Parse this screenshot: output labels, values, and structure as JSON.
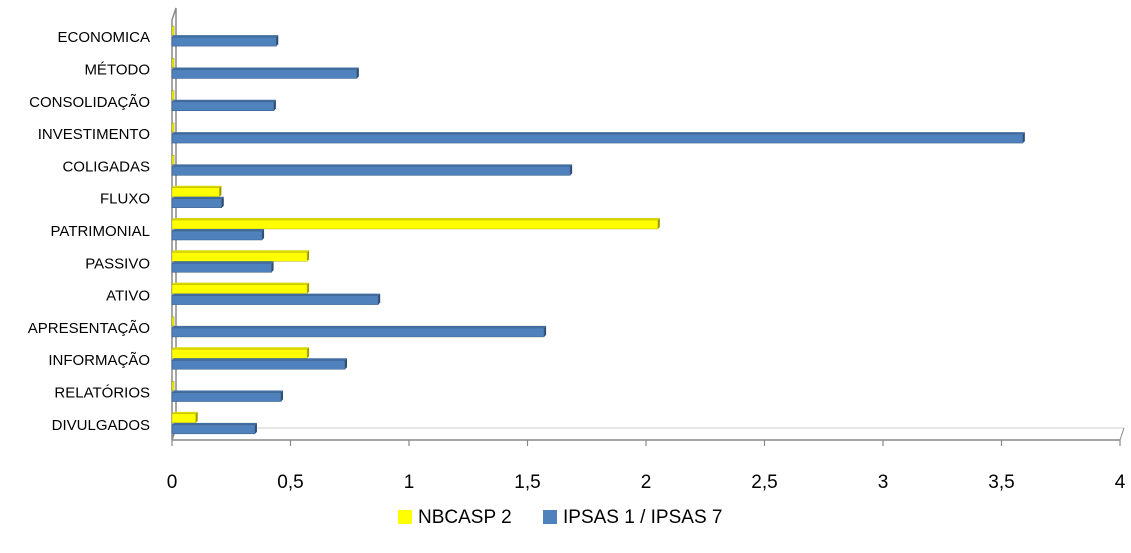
{
  "chart_data": {
    "type": "bar",
    "orientation": "horizontal",
    "categories": [
      "ECONOMICA",
      "MÉTODO",
      "CONSOLIDAÇÃO",
      "INVESTIMENTO",
      "COLIGADAS",
      "FLUXO",
      "PATRIMONIAL",
      "PASSIVO",
      "ATIVO",
      "APRESENTAÇÃO",
      "INFORMAÇÃO",
      "RELATÓRIOS",
      "DIVULGADOS"
    ],
    "series": [
      {
        "name": "NBCASP 2",
        "color": "#FFFF00",
        "values": [
          0,
          0,
          0,
          0,
          0,
          0.2,
          2.05,
          0.57,
          0.57,
          0,
          0.57,
          0,
          0.1
        ]
      },
      {
        "name": "IPSAS 1 / IPSAS 7",
        "color": "#4F81BD",
        "values": [
          0.44,
          0.78,
          0.43,
          3.59,
          1.68,
          0.21,
          0.38,
          0.42,
          0.87,
          1.57,
          0.73,
          0.46,
          0.35
        ]
      }
    ],
    "x_ticks": [
      "0",
      "0,5",
      "1",
      "1,5",
      "2",
      "2,5",
      "3",
      "3,5",
      "4"
    ],
    "xlim": [
      0,
      4
    ],
    "grid": false,
    "legend_position": "bottom",
    "title": "",
    "xlabel": "",
    "ylabel": ""
  }
}
